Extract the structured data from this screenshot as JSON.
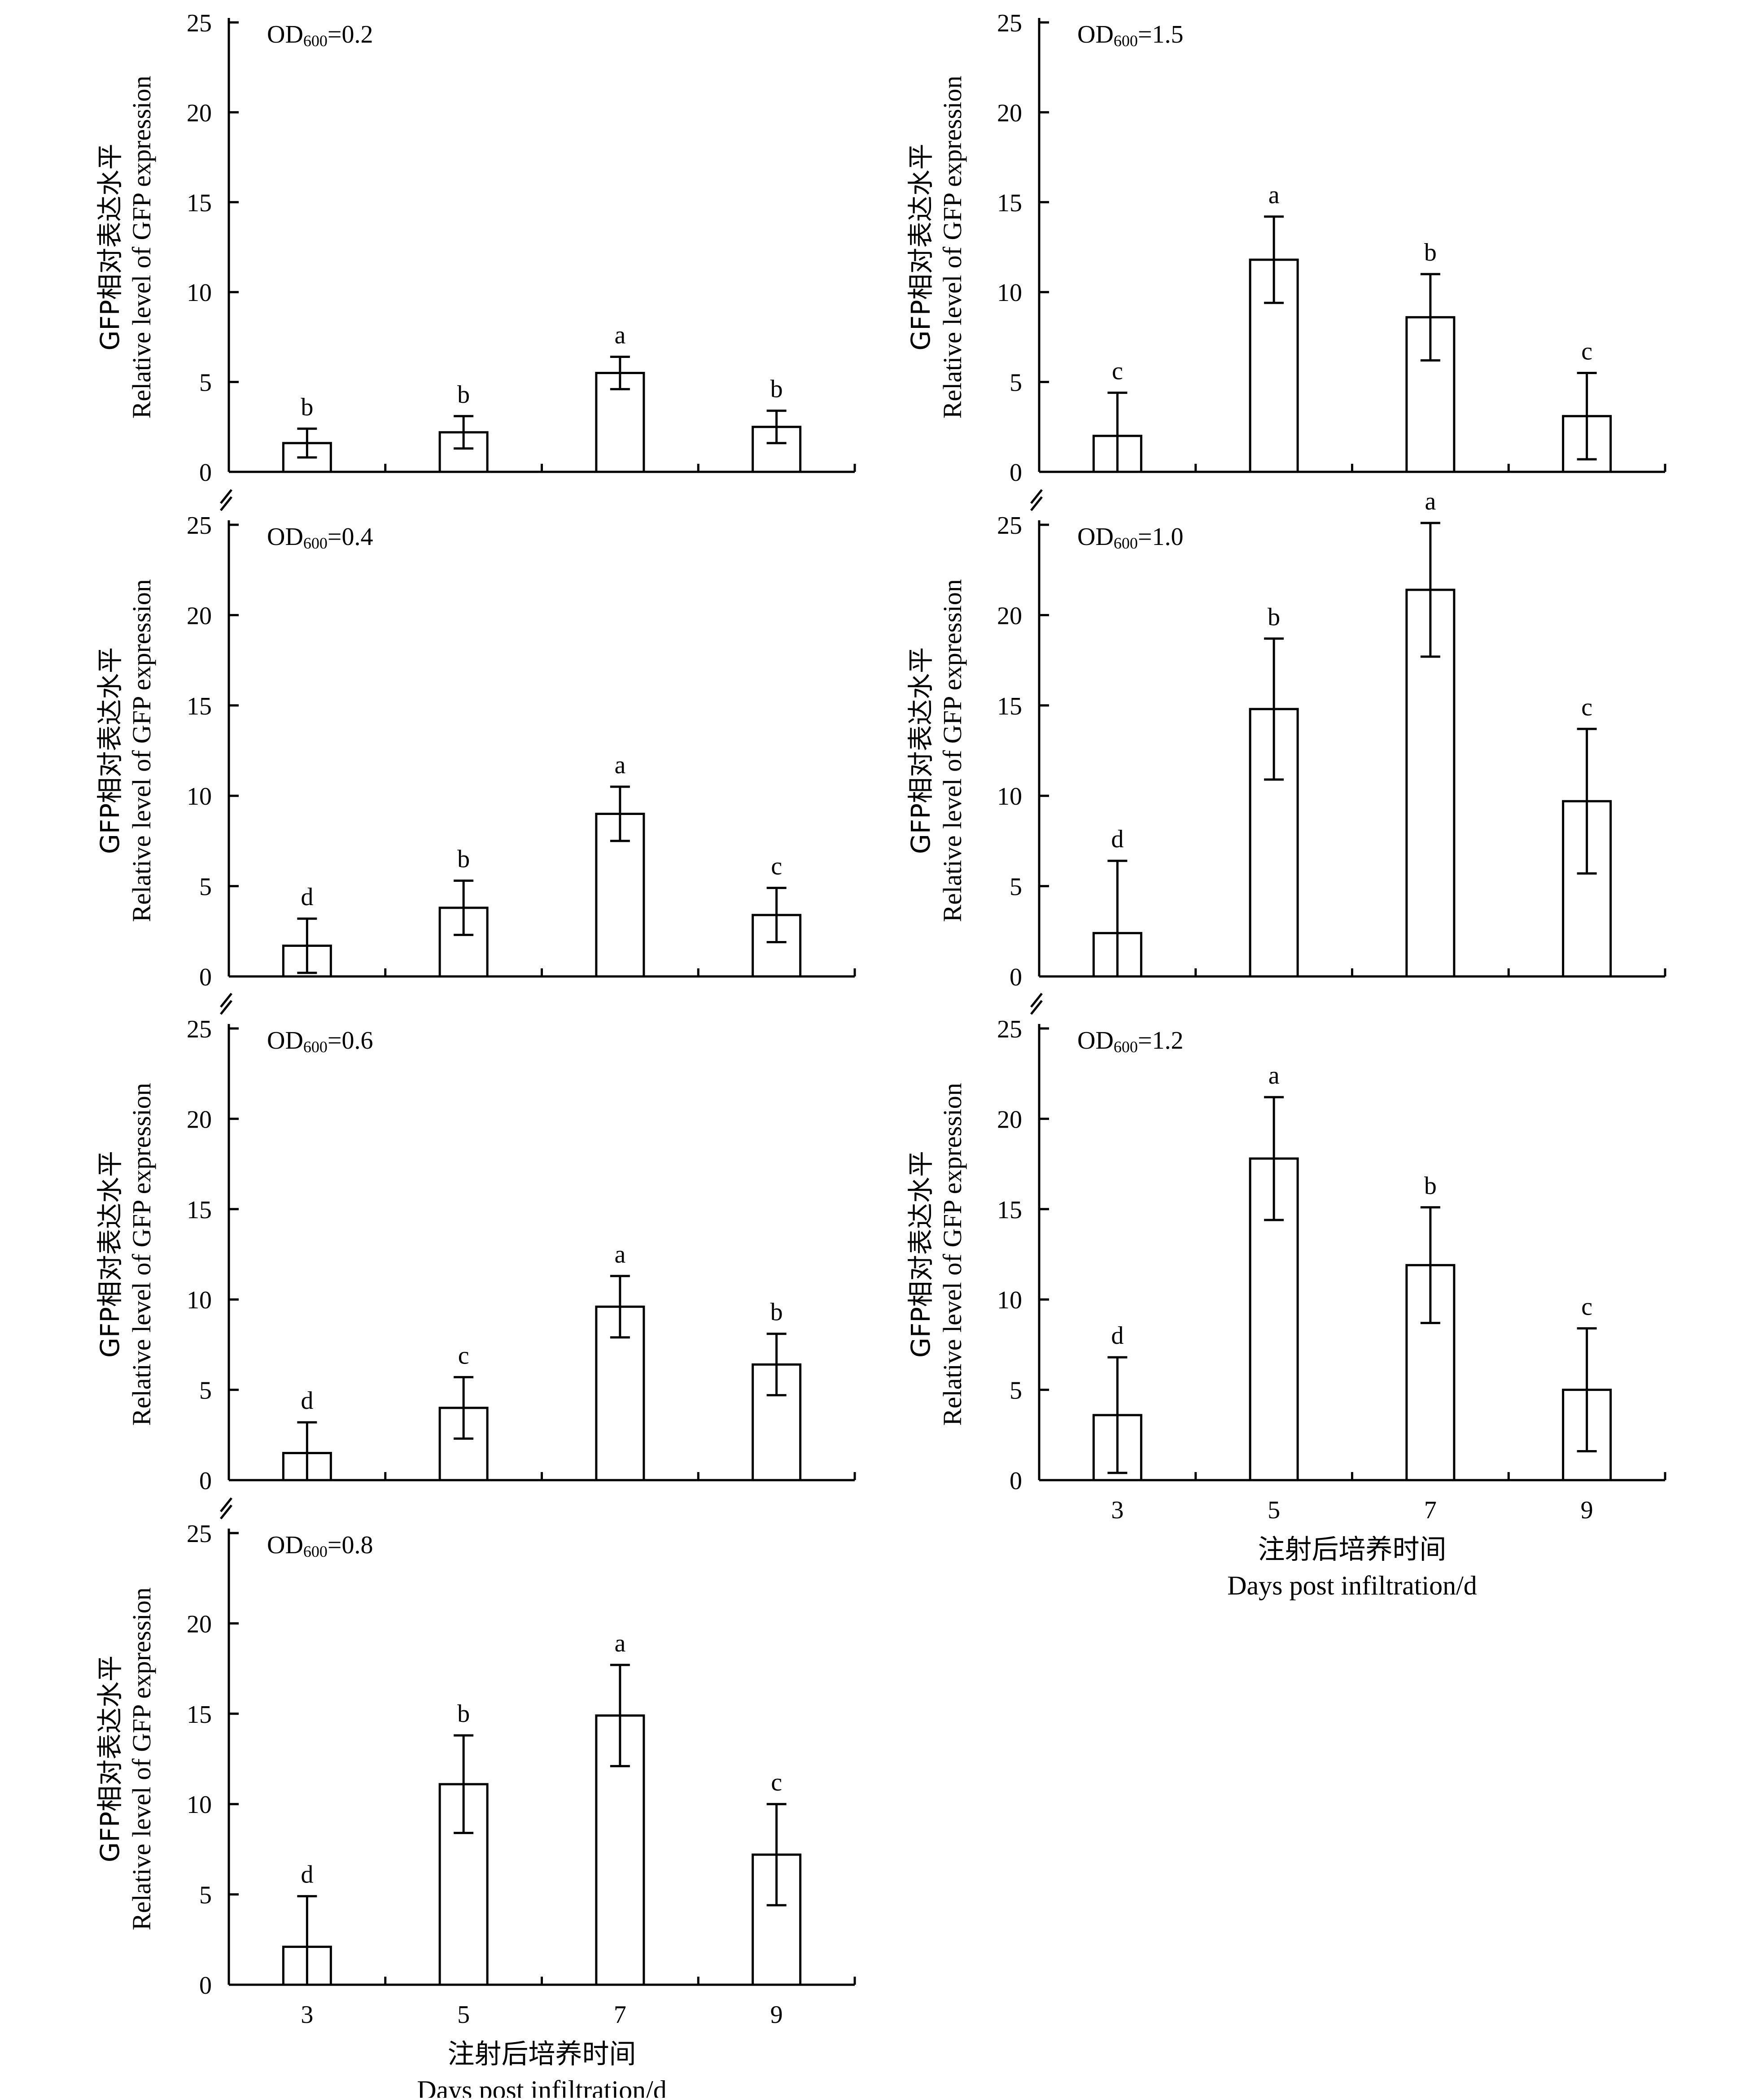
{
  "figure": {
    "ylabel_cn": "GFP相对表达水平",
    "ylabel_en": "Relative level of GFP expression",
    "xlabel_cn": "注射后培养时间",
    "xlabel_en": "Days post infiltration/d"
  },
  "chart_data": [
    {
      "id": "od02",
      "type": "bar",
      "label_main": "OD",
      "label_sub": "600",
      "label_value": "=0.2",
      "categories": [
        "3",
        "5",
        "7",
        "9"
      ],
      "values": [
        1.6,
        2.2,
        5.5,
        2.5
      ],
      "errors": [
        0.8,
        0.9,
        0.9,
        0.9
      ],
      "letters": [
        "b",
        "b",
        "a",
        "b"
      ],
      "ylim": [
        0,
        25
      ],
      "yticks": [
        0,
        5,
        10,
        15,
        20,
        25
      ],
      "show_xticklabels": false
    },
    {
      "id": "od04",
      "type": "bar",
      "label_main": "OD",
      "label_sub": "600",
      "label_value": "=0.4",
      "categories": [
        "3",
        "5",
        "7",
        "9"
      ],
      "values": [
        1.7,
        3.8,
        9.0,
        3.4
      ],
      "errors": [
        1.5,
        1.5,
        1.5,
        1.5
      ],
      "letters": [
        "d",
        "b",
        "a",
        "c"
      ],
      "ylim": [
        0,
        25
      ],
      "yticks": [
        0,
        5,
        10,
        15,
        20,
        25
      ],
      "show_xticklabels": false
    },
    {
      "id": "od06",
      "type": "bar",
      "label_main": "OD",
      "label_sub": "600",
      "label_value": "=0.6",
      "categories": [
        "3",
        "5",
        "7",
        "9"
      ],
      "values": [
        1.5,
        4.0,
        9.6,
        6.4
      ],
      "errors": [
        1.7,
        1.7,
        1.7,
        1.7
      ],
      "letters": [
        "d",
        "c",
        "a",
        "b"
      ],
      "ylim": [
        0,
        25
      ],
      "yticks": [
        0,
        5,
        10,
        15,
        20,
        25
      ],
      "show_xticklabels": false
    },
    {
      "id": "od08",
      "type": "bar",
      "label_main": "OD",
      "label_sub": "600",
      "label_value": "=0.8",
      "categories": [
        "3",
        "5",
        "7",
        "9"
      ],
      "values": [
        2.1,
        11.1,
        14.9,
        7.2
      ],
      "errors": [
        2.8,
        2.7,
        2.8,
        2.8
      ],
      "letters": [
        "d",
        "b",
        "a",
        "c"
      ],
      "ylim": [
        0,
        25
      ],
      "yticks": [
        0,
        5,
        10,
        15,
        20,
        25
      ],
      "show_xticklabels": true
    },
    {
      "id": "od15",
      "type": "bar",
      "label_main": "OD",
      "label_sub": "600",
      "label_value": "=1.5",
      "categories": [
        "3",
        "5",
        "7",
        "9"
      ],
      "values": [
        2.0,
        11.8,
        8.6,
        3.1
      ],
      "errors": [
        2.4,
        2.4,
        2.4,
        2.4
      ],
      "letters": [
        "c",
        "a",
        "b",
        "c"
      ],
      "ylim": [
        0,
        25
      ],
      "yticks": [
        0,
        5,
        10,
        15,
        20,
        25
      ],
      "show_xticklabels": false
    },
    {
      "id": "od10",
      "type": "bar",
      "label_main": "OD",
      "label_sub": "600",
      "label_value": "=1.0",
      "categories": [
        "3",
        "5",
        "7",
        "9"
      ],
      "values": [
        2.4,
        14.8,
        21.4,
        9.7
      ],
      "errors": [
        4.0,
        3.9,
        3.7,
        4.0
      ],
      "letters": [
        "d",
        "b",
        "a",
        "c"
      ],
      "ylim": [
        0,
        25
      ],
      "yticks": [
        0,
        5,
        10,
        15,
        20,
        25
      ],
      "show_xticklabels": false
    },
    {
      "id": "od12",
      "type": "bar",
      "label_main": "OD",
      "label_sub": "600",
      "label_value": "=1.2",
      "categories": [
        "3",
        "5",
        "7",
        "9"
      ],
      "values": [
        3.6,
        17.8,
        11.9,
        5.0
      ],
      "errors": [
        3.2,
        3.4,
        3.2,
        3.4
      ],
      "letters": [
        "d",
        "a",
        "b",
        "c"
      ],
      "ylim": [
        0,
        25
      ],
      "yticks": [
        0,
        5,
        10,
        15,
        20,
        25
      ],
      "show_xticklabels": true
    }
  ]
}
